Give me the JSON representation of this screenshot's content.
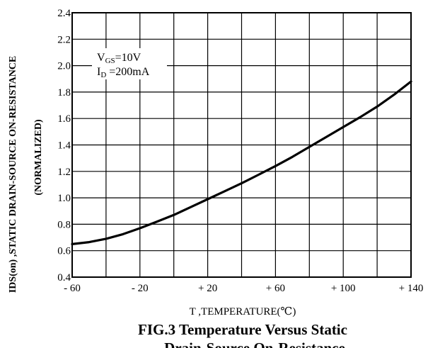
{
  "chart_data": {
    "type": "line",
    "caption_line1": "FIG.3 Temperature Versus Static",
    "caption_line2": "Drain-Source On-Resistance",
    "xlabel": "T ,TEMPERATURE(℃)",
    "ylabel_line1": "IDS(on) ,STATIC DRAIN-SOURCE ON-RESISTANCE",
    "ylabel_line2": "(NORMALIZED)",
    "xlim": [
      -60,
      140
    ],
    "ylim": [
      0.4,
      2.4
    ],
    "x_tick_labels": [
      {
        "value": -60,
        "label": "- 60"
      },
      {
        "value": -20,
        "label": "- 20"
      },
      {
        "value": 20,
        "label": "+ 20"
      },
      {
        "value": 60,
        "label": "+ 60"
      },
      {
        "value": 100,
        "label": "+ 100"
      },
      {
        "value": 140,
        "label": "+ 140"
      }
    ],
    "x_grid_step": 20,
    "y_ticks": [
      0.4,
      0.6,
      0.8,
      1.0,
      1.2,
      1.4,
      1.6,
      1.8,
      2.0,
      2.2,
      2.4
    ],
    "y_tick_labels": [
      "0.4",
      "0.6",
      "0.8",
      "1.0",
      "1.2",
      "1.4",
      "1.6",
      "1.8",
      "2.0",
      "2.2",
      "2.4"
    ],
    "grid": true,
    "annotation": {
      "vgs_main": "V",
      "vgs_sub": "GS",
      "vgs_val": "=10V",
      "id_main": "I",
      "id_sub": "D",
      "id_val": " =200mA"
    },
    "series": [
      {
        "x": [
          -60,
          -50,
          -40,
          -30,
          -20,
          -10,
          0,
          10,
          20,
          30,
          40,
          50,
          60,
          70,
          80,
          90,
          100,
          110,
          120,
          130,
          140
        ],
        "y": [
          0.65,
          0.665,
          0.69,
          0.725,
          0.77,
          0.82,
          0.87,
          0.93,
          0.99,
          1.05,
          1.11,
          1.175,
          1.24,
          1.31,
          1.385,
          1.46,
          1.535,
          1.61,
          1.69,
          1.78,
          1.88
        ]
      }
    ]
  }
}
